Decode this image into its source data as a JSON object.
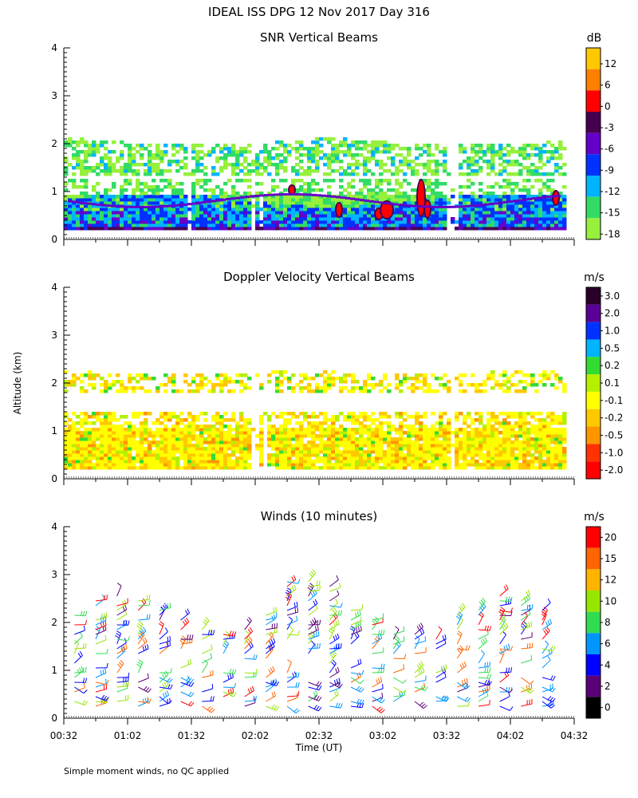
{
  "main_title": "IDEAL ISS DPG  12 Nov 2017 Day 316",
  "footnote": "Simple moment winds, no QC applied",
  "ylabel": "Altitude (km)",
  "xlabel": "Time (UT)",
  "chart_data": [
    {
      "type": "heatmap",
      "title": "SNR Vertical Beams",
      "unit": "dB",
      "ylabel": "Altitude (km)",
      "ylim": [
        0,
        4
      ],
      "yticks": [
        "0",
        "1",
        "2",
        "3",
        "4"
      ],
      "xlim": [
        "00:32",
        "04:32"
      ],
      "colorbar": {
        "labels": [
          "12",
          "6",
          "0",
          "-3",
          "-6",
          "-9",
          "-12",
          "-15",
          "-18"
        ],
        "colors": [
          "#ffc800",
          "#ff8000",
          "#ff0000",
          "#460050",
          "#6400c8",
          "#0032ff",
          "#00b4ff",
          "#32dc64",
          "#96f03c"
        ]
      },
      "echo_layers": [
        {
          "altitude_km": [
            0.2,
            0.9
          ],
          "intensity": "high"
        },
        {
          "altitude_km": [
            1.3,
            2.1
          ],
          "intensity": "low"
        }
      ]
    },
    {
      "type": "heatmap",
      "title": "Doppler Velocity Vertical Beams",
      "unit": "m/s",
      "ylabel": "Altitude (km)",
      "ylim": [
        0,
        4
      ],
      "yticks": [
        "0",
        "1",
        "2",
        "3",
        "4"
      ],
      "xlim": [
        "00:32",
        "04:32"
      ],
      "colorbar": {
        "labels": [
          "3.0",
          "2.0",
          "1.0",
          "0.5",
          "0.2",
          "0.1",
          "-0.1",
          "-0.2",
          "-0.5",
          "-1.0",
          "-2.0"
        ],
        "colors": [
          "#280028",
          "#5a0096",
          "#0032ff",
          "#00b4ff",
          "#32dc32",
          "#b4f000",
          "#ffff00",
          "#ffc800",
          "#ff9600",
          "#ff3200",
          "#ff0000"
        ]
      },
      "echo_layers": [
        {
          "altitude_km": [
            0.2,
            1.4
          ],
          "velocity": "-0.1 to -0.5"
        },
        {
          "altitude_km": [
            1.8,
            2.3
          ],
          "velocity": "-0.1 to -0.2"
        }
      ]
    },
    {
      "type": "wind_barbs",
      "title": "Winds (10 minutes)",
      "unit": "m/s",
      "ylabel": "Altitude (km)",
      "ylim": [
        0,
        4
      ],
      "yticks": [
        "0",
        "1",
        "2",
        "3",
        "4"
      ],
      "xlabel": "Time (UT)",
      "xticks": [
        "00:32",
        "01:02",
        "01:32",
        "02:02",
        "02:32",
        "03:02",
        "03:32",
        "04:02",
        "04:32"
      ],
      "colorbar": {
        "labels": [
          "20",
          "15",
          "12",
          "10",
          "8",
          "6",
          "4",
          "2",
          "0"
        ],
        "colors": [
          "#ff0000",
          "#ff6400",
          "#ffb400",
          "#96e600",
          "#32dc50",
          "#0096ff",
          "#0000ff",
          "#5a0078",
          "#000000"
        ]
      },
      "profile_times": [
        "00:37",
        "00:47",
        "00:57",
        "01:07",
        "01:17",
        "01:27",
        "01:37",
        "01:47",
        "01:57",
        "02:07",
        "02:17",
        "02:27",
        "02:37",
        "02:47",
        "02:57",
        "03:07",
        "03:17",
        "03:27",
        "03:37",
        "03:47",
        "03:57",
        "04:07",
        "04:17"
      ],
      "altitude_range_km": [
        0.2,
        2.8
      ]
    }
  ]
}
